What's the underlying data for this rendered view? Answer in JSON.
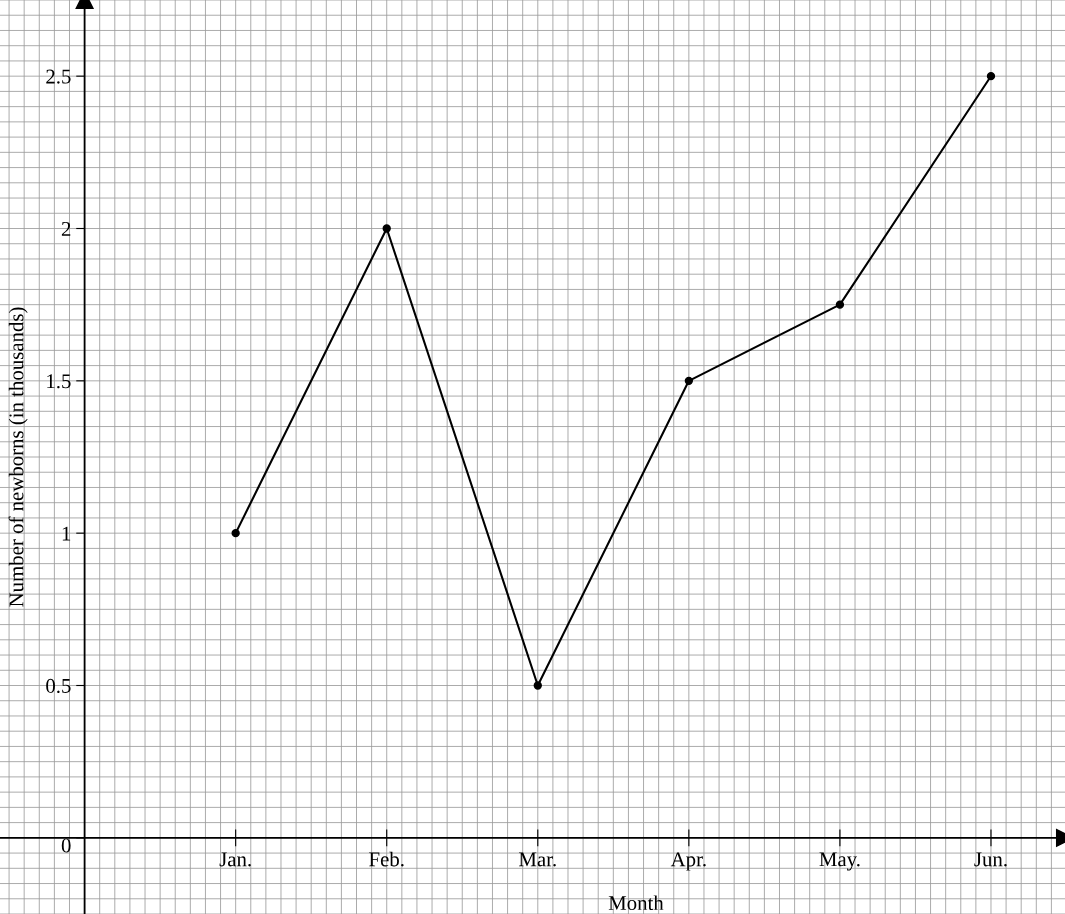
{
  "chart_data": {
    "type": "line",
    "categories": [
      "Jan.",
      "Feb.",
      "Mar.",
      "Apr.",
      "May.",
      "Jun."
    ],
    "values": [
      1,
      2,
      0.5,
      1.5,
      1.75,
      2.5
    ],
    "color": "#000000",
    "xlabel": "Month",
    "ylabel": "Number of newborns (in thousands)",
    "ylim": [
      -0.25,
      2.75
    ],
    "yticks": [
      0,
      0.5,
      1,
      1.5,
      2,
      2.5
    ],
    "grid": true,
    "marker": "circle",
    "line_style": "solid"
  }
}
